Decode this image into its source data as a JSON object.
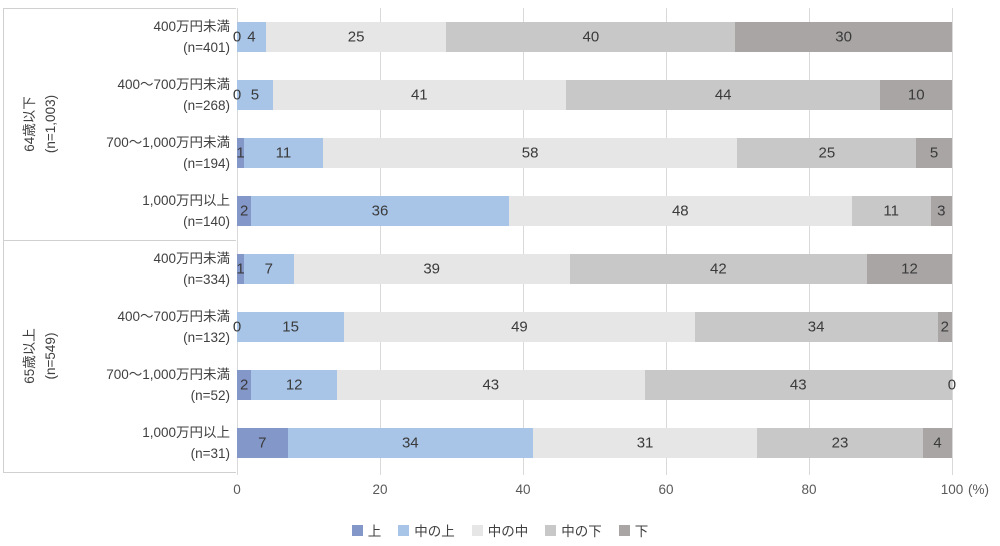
{
  "chart_data": {
    "type": "bar",
    "orientation": "horizontal-stacked",
    "unit": "(%)",
    "x_ticks": [
      0,
      20,
      40,
      60,
      80,
      100
    ],
    "xlim": [
      0,
      100
    ],
    "grid": true,
    "legend_position": "bottom",
    "series_names": [
      "上",
      "中の上",
      "中の中",
      "中の下",
      "下"
    ],
    "series_colors": [
      "#8497c9",
      "#a8c5e8",
      "#e7e6e6",
      "#c9c8c8",
      "#a9a5a5"
    ],
    "groups": [
      {
        "label": "64歳以下",
        "n_label": "(n=1,003)",
        "rows": [
          {
            "label": "400万円未満",
            "n_label": "(n=401)",
            "values": [
              0,
              4,
              25,
              40,
              30
            ]
          },
          {
            "label": "400〜700万円未満",
            "n_label": "(n=268)",
            "values": [
              0,
              5,
              41,
              44,
              10
            ]
          },
          {
            "label": "700〜1,000万円未満",
            "n_label": "(n=194)",
            "values": [
              1,
              11,
              58,
              25,
              5
            ]
          },
          {
            "label": "1,000万円以上",
            "n_label": "(n=140)",
            "values": [
              2,
              36,
              48,
              11,
              3
            ]
          }
        ]
      },
      {
        "label": "65歳以上",
        "n_label": "(n=549)",
        "rows": [
          {
            "label": "400万円未満",
            "n_label": "(n=334)",
            "values": [
              1,
              7,
              39,
              42,
              12
            ]
          },
          {
            "label": "400〜700万円未満",
            "n_label": "(n=132)",
            "values": [
              0,
              15,
              49,
              34,
              2
            ]
          },
          {
            "label": "700〜1,000万円未満",
            "n_label": "(n=52)",
            "values": [
              2,
              12,
              43,
              43,
              0
            ]
          },
          {
            "label": "1,000万円以上",
            "n_label": "(n=31)",
            "values": [
              7,
              34,
              31,
              23,
              4
            ]
          }
        ]
      }
    ]
  },
  "colors": {
    "gridline": "#d9d9d9",
    "panel_border": "#d0d0d0",
    "axis_text": "#595959",
    "label_text": "#404040",
    "value_text": "#3a3a3a",
    "background": "#ffffff"
  }
}
